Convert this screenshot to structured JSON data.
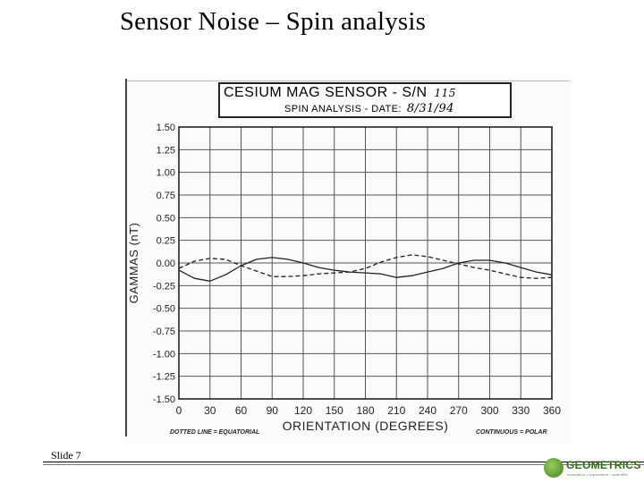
{
  "slide": {
    "title": "Sensor Noise – Spin analysis",
    "number_label": "Slide 7"
  },
  "logo": {
    "name": "GEOMETRICS",
    "tagline": "innovation • exploration • scientific"
  },
  "colors": {
    "ink": "#222222",
    "logo_green": "#2e6b16"
  },
  "chart_data": {
    "type": "line",
    "title": "CESIUM MAG SENSOR - S/N",
    "serial_handwritten": "115",
    "subtitle": "SPIN ANALYSIS - DATE:",
    "date_handwritten": "8/31/94",
    "xlabel": "ORIENTATION (DEGREES)",
    "ylabel": "GAMMAS (nT)",
    "xlim": [
      0,
      360
    ],
    "ylim": [
      -1.5,
      1.5
    ],
    "x_ticks": [
      "0",
      "30",
      "60",
      "90",
      "120",
      "150",
      "180",
      "210",
      "240",
      "270",
      "300",
      "330",
      "360"
    ],
    "y_ticks": [
      "1.50",
      "1.25",
      "1.00",
      "0.75",
      "0.50",
      "0.25",
      "0.00",
      "-0.25",
      "-0.50",
      "-0.75",
      "-1.00",
      "-1.25",
      "-1.50"
    ],
    "grid": true,
    "legend_notes": {
      "left": "DOTTED LINE = EQUATORIAL",
      "right": "CONTINUOUS = POLAR"
    },
    "series": [
      {
        "name": "POLAR",
        "style": "solid",
        "x": [
          0,
          15,
          30,
          45,
          60,
          75,
          90,
          105,
          120,
          135,
          150,
          165,
          180,
          195,
          210,
          225,
          240,
          255,
          270,
          285,
          300,
          315,
          330,
          345,
          360
        ],
        "y": [
          -0.08,
          -0.17,
          -0.2,
          -0.13,
          -0.03,
          0.04,
          0.06,
          0.04,
          0.0,
          -0.05,
          -0.08,
          -0.1,
          -0.11,
          -0.12,
          -0.16,
          -0.14,
          -0.1,
          -0.06,
          0.0,
          0.03,
          0.03,
          0.0,
          -0.05,
          -0.1,
          -0.13
        ]
      },
      {
        "name": "EQUATORIAL",
        "style": "dashed",
        "x": [
          0,
          15,
          30,
          45,
          60,
          75,
          90,
          105,
          120,
          135,
          150,
          165,
          180,
          195,
          210,
          225,
          240,
          255,
          270,
          285,
          300,
          315,
          330,
          345,
          360
        ],
        "y": [
          -0.06,
          0.02,
          0.05,
          0.04,
          -0.03,
          -0.09,
          -0.15,
          -0.15,
          -0.14,
          -0.12,
          -0.11,
          -0.1,
          -0.06,
          0.01,
          0.06,
          0.09,
          0.07,
          0.03,
          -0.01,
          -0.05,
          -0.08,
          -0.12,
          -0.16,
          -0.17,
          -0.16
        ]
      }
    ]
  }
}
